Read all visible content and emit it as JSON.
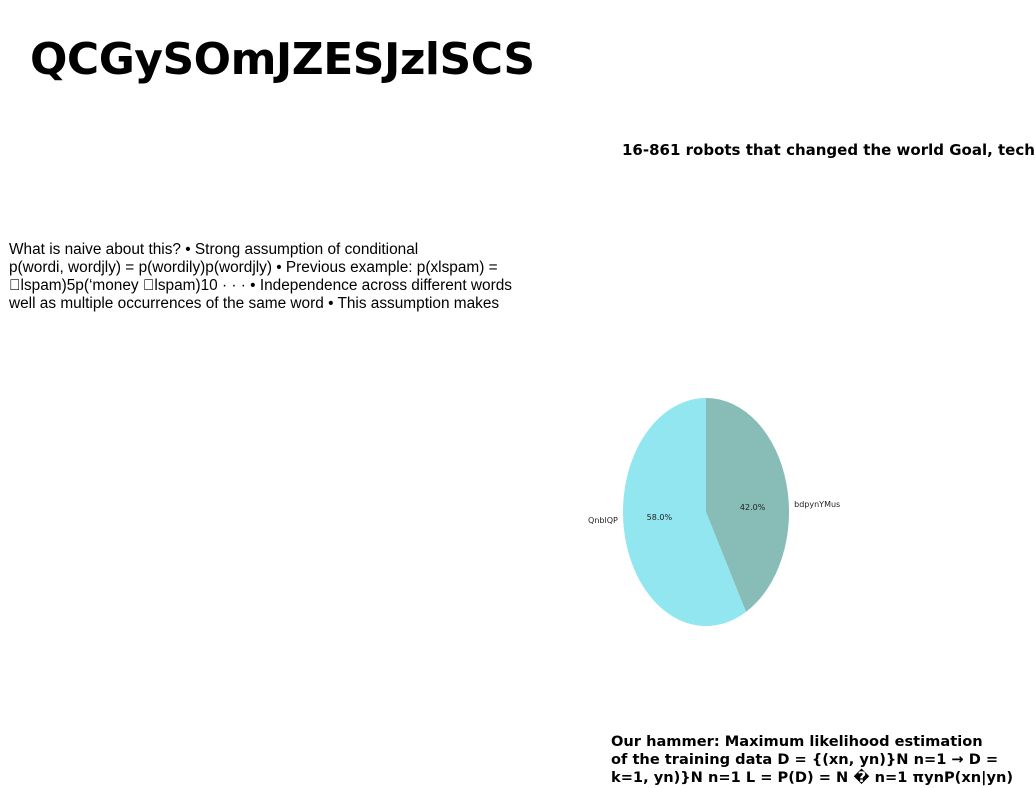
{
  "title": "QCGySOmJZESJzlSCS",
  "right_heading": "16-861 robots that changed the world Goal, tech",
  "body_lines": [
    "What is naive about this? • Strong assumption of conditional",
    "p(wordi, wordjly) = p(wordily)p(wordjly) • Previous example: p(xlspam) =",
    "\u0000lspam)5p(‘money \u0000lspam)10 · · · • Independence across different words",
    "well as multiple occurrences of the same word • This assumption makes"
  ],
  "bottom_lines": [
    "Our hammer: Maximum likelihood estimation",
    "of the training data D = {(xn, yn)}N n=1 → D =",
    "k=1, yn)}N n=1 L = P(D) = N � n=1 πynP(xn|yn)"
  ],
  "chart_data": {
    "type": "pie",
    "slices": [
      {
        "label": "bdpynYMus",
        "value": 42.0,
        "pct_label": "42.0%",
        "color": "#87bcb7"
      },
      {
        "label": "QnblQP",
        "value": 58.0,
        "pct_label": "58.0%",
        "color": "#91e6ef"
      }
    ],
    "start_angle": "top, clockwise",
    "legend": "none"
  }
}
